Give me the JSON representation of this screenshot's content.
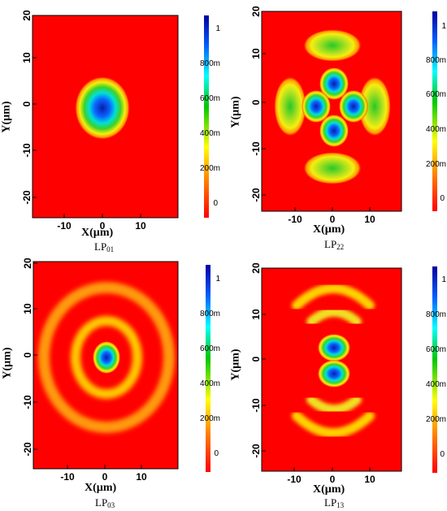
{
  "panels": [
    {
      "mode_label": "LP",
      "mode_sub": "01",
      "xlabel": "X(µm)",
      "ylabel": "Y(µm)",
      "x_ticks": [
        "-10",
        "0",
        "10"
      ],
      "y_ticks": [
        "20",
        "10",
        "0",
        "-10",
        "-20"
      ],
      "colorbar_ticks": [
        "1",
        "800m",
        "600m",
        "400m",
        "200m",
        "0"
      ]
    },
    {
      "mode_label": "LP",
      "mode_sub": "22",
      "xlabel": "X(µm)",
      "ylabel": "Y(µm)",
      "x_ticks": [
        "-10",
        "0",
        "10"
      ],
      "y_ticks": [
        "20",
        "10",
        "0",
        "-10",
        "-20"
      ],
      "colorbar_ticks": [
        "1",
        "800m",
        "600m",
        "400m",
        "200m",
        "0"
      ]
    },
    {
      "mode_label": "LP",
      "mode_sub": "03",
      "xlabel": "X(µm)",
      "ylabel": "Y(µm)",
      "x_ticks": [
        "-10",
        "0",
        "10"
      ],
      "y_ticks": [
        "20",
        "10",
        "0",
        "-10",
        "-20"
      ],
      "colorbar_ticks": [
        "1",
        "800m",
        "600m",
        "400m",
        "200m",
        "0"
      ]
    },
    {
      "mode_label": "LP",
      "mode_sub": "13",
      "xlabel": "X(µm)",
      "ylabel": "Y(µm)",
      "x_ticks": [
        "-10",
        "0",
        "10"
      ],
      "y_ticks": [
        "20",
        "10",
        "0",
        "-10",
        "-20"
      ],
      "colorbar_ticks": [
        "1",
        "800m",
        "600m",
        "400m",
        "200m",
        "0"
      ]
    }
  ],
  "colormap": [
    "#ff0000",
    "#ff8c00",
    "#ffff00",
    "#00c800",
    "#00ffff",
    "#0040ff",
    "#0000a0"
  ],
  "axis_range": {
    "x": [
      -18,
      20
    ],
    "y": [
      -22,
      20
    ]
  },
  "colorbar_range": [
    -0.06,
    1.06
  ]
}
